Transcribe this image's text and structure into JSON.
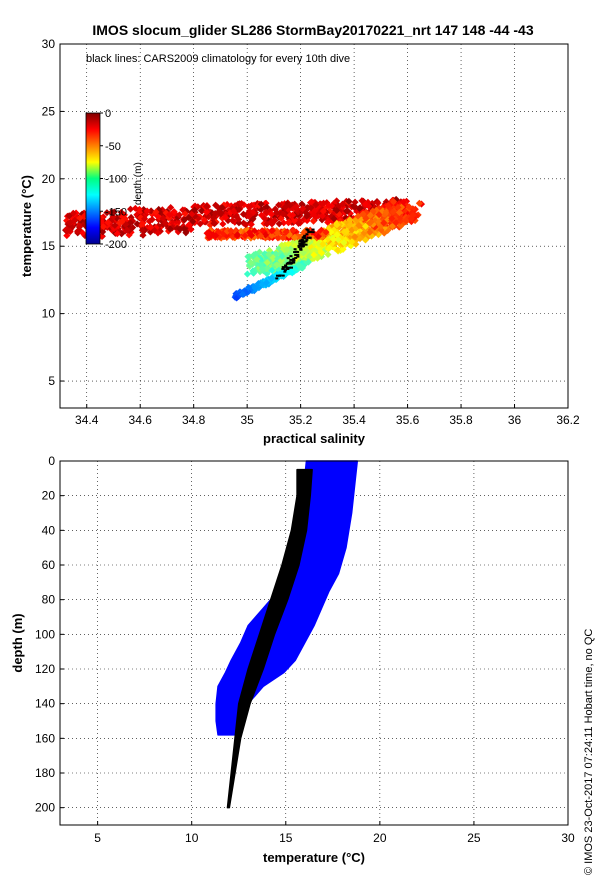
{
  "chart_data": [
    {
      "type": "scatter",
      "title": "IMOS slocum_glider SL286 StormBay20170221_nrt 147  148  -44  -43",
      "annotation": "black lines: CARS2009 climatology for every 10th dive",
      "xlabel": "practical salinity",
      "ylabel": "temperature (°C)",
      "xlim": [
        34.3,
        36.2
      ],
      "ylim": [
        3,
        30
      ],
      "xticks": [
        "34.4",
        "34.6",
        "34.8",
        "35",
        "35.2",
        "35.4",
        "35.6",
        "35.8",
        "36",
        "36.2"
      ],
      "yticks": [
        "5",
        "10",
        "15",
        "20",
        "25",
        "30"
      ],
      "grid": true,
      "colorbar": {
        "label": "depth (m)",
        "ticks": [
          "0",
          "-50",
          "-100",
          "-150",
          "-200"
        ],
        "range": [
          -200,
          0
        ],
        "colormap": "jet",
        "placement": "upper-left inside"
      },
      "point_color": "depth"
    },
    {
      "type": "scatter",
      "xlabel": "temperature (°C)",
      "ylabel": "depth (m)",
      "xlim": [
        3,
        30
      ],
      "ylim": [
        210,
        0
      ],
      "xticks": [
        "5",
        "10",
        "15",
        "20",
        "25",
        "30"
      ],
      "yticks": [
        "0",
        "20",
        "40",
        "60",
        "80",
        "100",
        "120",
        "140",
        "160",
        "180",
        "200"
      ],
      "grid": true,
      "series": [
        {
          "color": "#0000ff",
          "profile_envelope": [
            {
              "depth": 0,
              "tmin": 16.1,
              "tmax": 18.8
            },
            {
              "depth": 10,
              "tmin": 16.0,
              "tmax": 18.7
            },
            {
              "depth": 30,
              "tmin": 15.9,
              "tmax": 18.5
            },
            {
              "depth": 50,
              "tmin": 15.7,
              "tmax": 18.2
            },
            {
              "depth": 65,
              "tmin": 15.5,
              "tmax": 17.8
            },
            {
              "depth": 75,
              "tmin": 14.6,
              "tmax": 17.3
            },
            {
              "depth": 85,
              "tmin": 13.8,
              "tmax": 16.9
            },
            {
              "depth": 95,
              "tmin": 13.0,
              "tmax": 16.5
            },
            {
              "depth": 105,
              "tmin": 12.6,
              "tmax": 16.0
            },
            {
              "depth": 115,
              "tmin": 12.1,
              "tmax": 15.5
            },
            {
              "depth": 122,
              "tmin": 11.8,
              "tmax": 14.9
            },
            {
              "depth": 130,
              "tmin": 11.4,
              "tmax": 13.8
            },
            {
              "depth": 140,
              "tmin": 11.3,
              "tmax": 13.0
            },
            {
              "depth": 150,
              "tmin": 11.3,
              "tmax": 12.7
            },
            {
              "depth": 158,
              "tmin": 11.4,
              "tmax": 12.3
            }
          ]
        },
        {
          "color": "#000000",
          "profile_envelope": [
            {
              "depth": 5,
              "tmin": 15.6,
              "tmax": 16.4
            },
            {
              "depth": 20,
              "tmin": 15.6,
              "tmax": 16.3
            },
            {
              "depth": 40,
              "tmin": 15.3,
              "tmax": 16.1
            },
            {
              "depth": 60,
              "tmin": 14.8,
              "tmax": 15.7
            },
            {
              "depth": 80,
              "tmin": 14.2,
              "tmax": 15.1
            },
            {
              "depth": 100,
              "tmin": 13.6,
              "tmax": 14.4
            },
            {
              "depth": 120,
              "tmin": 13.0,
              "tmax": 13.8
            },
            {
              "depth": 140,
              "tmin": 12.5,
              "tmax": 13.1
            },
            {
              "depth": 160,
              "tmin": 12.3,
              "tmax": 12.6
            },
            {
              "depth": 180,
              "tmin": 12.1,
              "tmax": 12.3
            },
            {
              "depth": 200,
              "tmin": 11.9,
              "tmax": 12.0
            }
          ]
        }
      ]
    }
  ],
  "credit": "© IMOS 23-Oct-2017 07:24:11 Hobart time, no QC"
}
